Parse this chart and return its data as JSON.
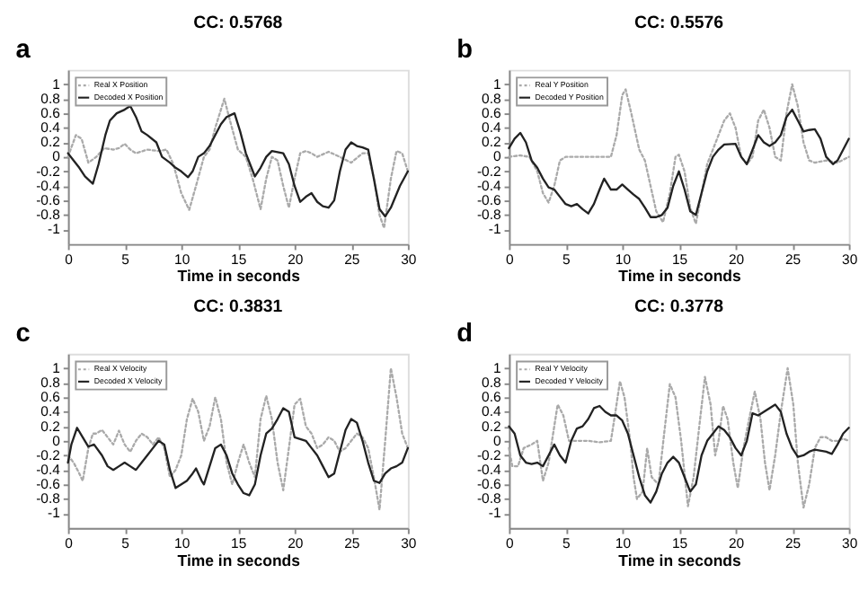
{
  "chart_data": [
    {
      "type": "line",
      "title": "CC: 0.5768",
      "xlabel": "Time in seconds",
      "annotations": [
        "a"
      ],
      "xlim": [
        0,
        30
      ],
      "xticks": [
        0,
        5,
        10,
        15,
        20,
        25,
        30
      ],
      "ylim": [
        -1.2,
        1.2
      ],
      "yticks": [
        -1,
        -0.8,
        -0.6,
        -0.4,
        -0.2,
        0,
        0.2,
        0.4,
        0.6,
        0.8,
        1
      ],
      "legend": "top left",
      "grid": false,
      "series": [
        {
          "name": "Real X Position",
          "color": "#aaaaaa",
          "line_style": "dotted",
          "x": [
            0,
            0.7,
            1.2,
            1.8,
            2.5,
            3.2,
            4,
            4.5,
            5,
            5.5,
            6,
            7,
            8,
            8.7,
            9.3,
            10,
            10.7,
            11.3,
            12,
            12.5,
            13,
            13.8,
            14.3,
            15,
            15.7,
            16.3,
            17,
            17.5,
            18,
            18.5,
            19,
            19.5,
            20,
            20.5,
            21,
            21.5,
            22,
            23,
            24,
            25,
            26,
            26.5,
            27,
            27.5,
            27.9,
            28.5,
            29,
            29.5,
            30
          ],
          "values": [
            0,
            0.3,
            0.25,
            -0.08,
            0,
            0.12,
            0.1,
            0.12,
            0.18,
            0.1,
            0.05,
            0.1,
            0.08,
            0.1,
            -0.1,
            -0.5,
            -0.73,
            -0.4,
            0,
            0.1,
            0.4,
            0.8,
            0.5,
            0.1,
            0,
            -0.3,
            -0.72,
            -0.3,
            0,
            -0.05,
            -0.4,
            -0.7,
            -0.3,
            0.05,
            0.08,
            0.05,
            0,
            0.07,
            0,
            -0.08,
            0.05,
            0.05,
            -0.3,
            -0.8,
            -0.98,
            -0.3,
            0.08,
            0.05,
            -0.2
          ]
        },
        {
          "name": "Decoded X Position",
          "color": "#222222",
          "line_style": "solid",
          "x": [
            0,
            0.5,
            1,
            1.5,
            2.2,
            2.7,
            3.3,
            3.7,
            4.3,
            5,
            5.5,
            6,
            6.5,
            7,
            7.8,
            8.3,
            9,
            9.5,
            10,
            10.6,
            11,
            11.5,
            12,
            12.5,
            13.5,
            14,
            14.7,
            15.2,
            15.7,
            16.5,
            17,
            17.5,
            18,
            19,
            19.5,
            20,
            20.5,
            21,
            21.5,
            22,
            22.5,
            23,
            23.5,
            24,
            24.5,
            25,
            25.5,
            26,
            26.5,
            27,
            27.5,
            28,
            28.5,
            29.3,
            30
          ],
          "values": [
            0.05,
            -0.05,
            -0.15,
            -0.27,
            -0.37,
            -0.1,
            0.3,
            0.5,
            0.6,
            0.65,
            0.7,
            0.55,
            0.35,
            0.3,
            0.2,
            0,
            -0.08,
            -0.15,
            -0.2,
            -0.28,
            -0.2,
            0,
            0.05,
            0.15,
            0.45,
            0.55,
            0.6,
            0.35,
            0.05,
            -0.27,
            -0.15,
            0,
            0.08,
            0.05,
            -0.1,
            -0.4,
            -0.62,
            -0.55,
            -0.5,
            -0.62,
            -0.68,
            -0.7,
            -0.6,
            -0.2,
            0.1,
            0.2,
            0.15,
            0.13,
            0.1,
            -0.3,
            -0.72,
            -0.82,
            -0.7,
            -0.4,
            -0.2
          ]
        }
      ]
    },
    {
      "type": "line",
      "title": "CC: 0.5576",
      "xlabel": "Time in seconds",
      "annotations": [
        "b"
      ],
      "xlim": [
        0,
        30
      ],
      "xticks": [
        0,
        5,
        10,
        15,
        20,
        25,
        30
      ],
      "ylim": [
        -1.2,
        1.2
      ],
      "yticks": [
        -1,
        -0.8,
        -0.6,
        -0.4,
        -0.2,
        0,
        0.2,
        0.4,
        0.6,
        0.8,
        1
      ],
      "legend": "top left",
      "grid": false,
      "series": [
        {
          "name": "Real Y Position",
          "color": "#aaaaaa",
          "line_style": "dotted",
          "x": [
            0,
            1,
            1.8,
            2.5,
            3,
            3.5,
            4,
            4.5,
            5,
            6,
            7,
            8,
            9,
            9.5,
            10,
            10.3,
            10.8,
            11.5,
            12,
            12.5,
            13,
            13.6,
            14.2,
            14.7,
            15,
            15.5,
            16,
            16.5,
            17,
            17.5,
            18,
            18.5,
            19,
            19.5,
            20,
            20.5,
            21,
            21.5,
            22,
            22.5,
            23,
            23.5,
            24,
            24.5,
            25,
            25.5,
            26,
            26.5,
            27,
            28,
            29,
            30
          ],
          "values": [
            0,
            0.02,
            0,
            -0.2,
            -0.5,
            -0.63,
            -0.4,
            -0.05,
            0,
            0,
            0,
            0,
            0,
            0.3,
            0.85,
            0.93,
            0.6,
            0.1,
            -0.05,
            -0.4,
            -0.75,
            -0.9,
            -0.5,
            0,
            0.03,
            -0.2,
            -0.7,
            -0.92,
            -0.5,
            -0.1,
            0.1,
            0.3,
            0.5,
            0.6,
            0.4,
            0,
            -0.1,
            0,
            0.5,
            0.65,
            0.4,
            0,
            -0.05,
            0.6,
            1,
            0.7,
            0.2,
            -0.05,
            -0.08,
            -0.05,
            -0.08,
            0
          ]
        },
        {
          "name": "Decoded Y Position",
          "color": "#222222",
          "line_style": "solid",
          "x": [
            0,
            0.5,
            1,
            1.5,
            2,
            2.5,
            3,
            3.5,
            4,
            4.5,
            5,
            5.5,
            6,
            6.5,
            7,
            7.5,
            8,
            8.4,
            9,
            9.5,
            10,
            10.5,
            11,
            11.5,
            12,
            12.5,
            13,
            13.5,
            14,
            14.5,
            15,
            15.5,
            16,
            16.5,
            17,
            17.5,
            18,
            18.5,
            19,
            20,
            20.5,
            21,
            21.5,
            22,
            22.5,
            23,
            23.5,
            24,
            24.5,
            25,
            25.5,
            26,
            26.5,
            27,
            27.5,
            28,
            28.6,
            29,
            30
          ],
          "values": [
            0.12,
            0.25,
            0.33,
            0.2,
            -0.05,
            -0.15,
            -0.3,
            -0.42,
            -0.45,
            -0.55,
            -0.65,
            -0.68,
            -0.65,
            -0.72,
            -0.78,
            -0.65,
            -0.45,
            -0.3,
            -0.45,
            -0.45,
            -0.38,
            -0.45,
            -0.52,
            -0.58,
            -0.7,
            -0.83,
            -0.83,
            -0.8,
            -0.7,
            -0.4,
            -0.2,
            -0.45,
            -0.75,
            -0.8,
            -0.5,
            -0.2,
            0,
            0.1,
            0.17,
            0.18,
            0,
            -0.1,
            0.1,
            0.3,
            0.2,
            0.15,
            0.2,
            0.3,
            0.55,
            0.65,
            0.5,
            0.35,
            0.37,
            0.38,
            0.25,
            0,
            -0.1,
            -0.05,
            0.25
          ]
        }
      ]
    },
    {
      "type": "line",
      "title": "CC: 0.3831",
      "xlabel": "Time in seconds",
      "annotations": [
        "c"
      ],
      "xlim": [
        0,
        30
      ],
      "xticks": [
        0,
        5,
        10,
        15,
        20,
        25,
        30
      ],
      "ylim": [
        -1.2,
        1.2
      ],
      "yticks": [
        -1,
        -0.8,
        -0.6,
        -0.4,
        -0.2,
        0,
        0.2,
        0.4,
        0.6,
        0.8,
        1
      ],
      "legend": "top left",
      "grid": false,
      "series": [
        {
          "name": "Real X Velocity",
          "color": "#aaaaaa",
          "line_style": "dotted",
          "x": [
            0,
            0.5,
            1,
            1.3,
            1.8,
            2.2,
            2.5,
            3,
            3.5,
            4,
            4.5,
            5,
            5.5,
            6,
            6.5,
            7,
            7.5,
            8,
            8.5,
            9,
            9.5,
            10,
            10.5,
            11,
            11.5,
            12,
            12.5,
            13,
            13.5,
            14,
            14.5,
            15,
            15.5,
            16,
            16.5,
            17,
            17.5,
            18,
            18.5,
            19,
            19.5,
            20,
            20.5,
            21,
            21.5,
            22,
            22.5,
            23,
            23.5,
            24,
            24.5,
            25,
            25.5,
            26,
            26.5,
            27,
            27.5,
            28,
            28.5,
            29,
            29.5,
            30
          ],
          "values": [
            -0.2,
            -0.3,
            -0.45,
            -0.55,
            -0.1,
            0.1,
            0.1,
            0.15,
            0.05,
            -0.05,
            0.14,
            -0.05,
            -0.15,
            0,
            0.1,
            0.05,
            -0.05,
            0.05,
            -0.1,
            -0.5,
            -0.4,
            -0.2,
            0.3,
            0.58,
            0.4,
            0,
            0.2,
            0.6,
            0.3,
            -0.3,
            -0.6,
            -0.3,
            -0.05,
            -0.3,
            -0.5,
            0.3,
            0.62,
            0.3,
            -0.3,
            -0.68,
            -0.1,
            0.5,
            0.58,
            0.2,
            0.1,
            -0.1,
            -0.05,
            0.05,
            0,
            -0.15,
            -0.1,
            0,
            0.1,
            0.05,
            -0.1,
            -0.5,
            -0.95,
            0,
            1,
            0.6,
            0.1,
            -0.1
          ]
        },
        {
          "name": "Decoded X Velocity",
          "color": "#222222",
          "line_style": "solid",
          "x": [
            0,
            0.3,
            0.8,
            1.3,
            1.8,
            2.3,
            3,
            3.5,
            4,
            4.5,
            5,
            5.5,
            6,
            6.5,
            7,
            7.5,
            8,
            8.5,
            9,
            9.5,
            10,
            10.5,
            11,
            11.3,
            11.8,
            12,
            12.5,
            13,
            13.5,
            14,
            14.5,
            15,
            15.5,
            16,
            16.5,
            17,
            17.5,
            18,
            18.5,
            19,
            19.5,
            20,
            21,
            21.5,
            22,
            22.5,
            23,
            23.5,
            24,
            24.5,
            25,
            25.5,
            26,
            26.5,
            27,
            27.5,
            28,
            28.5,
            29,
            29.5,
            30
          ],
          "values": [
            -0.3,
            -0.05,
            0.18,
            0.05,
            -0.08,
            -0.05,
            -0.2,
            -0.35,
            -0.4,
            -0.35,
            -0.3,
            -0.35,
            -0.4,
            -0.3,
            -0.2,
            -0.1,
            0,
            -0.05,
            -0.4,
            -0.65,
            -0.6,
            -0.55,
            -0.45,
            -0.38,
            -0.55,
            -0.6,
            -0.35,
            -0.1,
            -0.05,
            -0.2,
            -0.45,
            -0.6,
            -0.72,
            -0.75,
            -0.6,
            -0.2,
            0.1,
            0.17,
            0.3,
            0.45,
            0.4,
            0.05,
            0,
            -0.1,
            -0.2,
            -0.35,
            -0.5,
            -0.45,
            -0.15,
            0.15,
            0.3,
            0.25,
            0,
            -0.3,
            -0.55,
            -0.58,
            -0.45,
            -0.38,
            -0.35,
            -0.3,
            -0.1
          ]
        }
      ]
    },
    {
      "type": "line",
      "title": "CC: 0.3778",
      "xlabel": "Time in seconds",
      "annotations": [
        "d"
      ],
      "xlim": [
        0,
        30
      ],
      "xticks": [
        0,
        5,
        10,
        15,
        20,
        25,
        30
      ],
      "ylim": [
        -1.2,
        1.2
      ],
      "yticks": [
        -1,
        -0.8,
        -0.6,
        -0.4,
        -0.2,
        0,
        0.2,
        0.4,
        0.6,
        0.8,
        1
      ],
      "legend": "top left",
      "grid": false,
      "series": [
        {
          "name": "Real Y Velocity",
          "color": "#aaaaaa",
          "line_style": "dotted",
          "x": [
            0,
            0.3,
            0.8,
            1.3,
            2,
            2.5,
            3,
            3.5,
            4,
            4.3,
            4.8,
            5.3,
            6,
            7,
            8,
            9,
            9.4,
            9.8,
            10.2,
            10.7,
            11,
            11.3,
            11.8,
            12.2,
            12.6,
            13.2,
            13.7,
            14.2,
            14.7,
            15.2,
            15.8,
            16.3,
            16.8,
            17.3,
            17.8,
            18.2,
            18.5,
            18.9,
            19.3,
            19.8,
            20.2,
            20.7,
            21.2,
            21.7,
            22.2,
            22.6,
            23,
            23.5,
            24,
            24.6,
            25.1,
            25.5,
            26,
            26.5,
            27,
            27.5,
            28,
            28.5,
            29,
            29.5,
            30
          ],
          "values": [
            -0.1,
            -0.35,
            -0.35,
            -0.1,
            -0.05,
            0,
            -0.55,
            -0.3,
            0.2,
            0.5,
            0.35,
            0,
            0,
            0,
            -0.02,
            0,
            0.4,
            0.82,
            0.6,
            0,
            -0.5,
            -0.8,
            -0.7,
            -0.1,
            -0.5,
            -0.6,
            0.1,
            0.78,
            0.6,
            0,
            -0.9,
            -0.5,
            0.2,
            0.88,
            0.5,
            -0.2,
            0,
            0.48,
            0.3,
            -0.3,
            -0.65,
            -0.1,
            0.3,
            0.68,
            0.3,
            -0.3,
            -0.68,
            -0.2,
            0.4,
            1,
            0.5,
            -0.3,
            -0.92,
            -0.6,
            -0.1,
            0.05,
            0.05,
            0,
            0,
            0.03,
            0
          ]
        },
        {
          "name": "Decoded Y Velocity",
          "color": "#222222",
          "line_style": "solid",
          "x": [
            0,
            0.5,
            1,
            1.5,
            2,
            2.5,
            3,
            3.5,
            4,
            4.5,
            5,
            5.5,
            6,
            6.5,
            7,
            7.5,
            8,
            8.5,
            9,
            9.5,
            10,
            10.5,
            11,
            11.5,
            12,
            12.5,
            13,
            13.5,
            14,
            14.5,
            15,
            15.5,
            16,
            16.5,
            17,
            17.5,
            18,
            18.5,
            19,
            19.5,
            20,
            20.5,
            21,
            21.5,
            22,
            22.5,
            23,
            23.5,
            24,
            24.5,
            25,
            25.5,
            26,
            26.5,
            27,
            28,
            28.5,
            29,
            29.5,
            30
          ],
          "values": [
            0.2,
            0.1,
            -0.2,
            -0.3,
            -0.32,
            -0.3,
            -0.35,
            -0.2,
            -0.05,
            -0.2,
            -0.3,
            0,
            0.17,
            0.2,
            0.3,
            0.45,
            0.48,
            0.4,
            0.35,
            0.35,
            0.28,
            0.1,
            -0.2,
            -0.5,
            -0.75,
            -0.85,
            -0.7,
            -0.45,
            -0.3,
            -0.22,
            -0.3,
            -0.5,
            -0.7,
            -0.6,
            -0.2,
            0,
            0.1,
            0.2,
            0.15,
            0.05,
            -0.1,
            -0.2,
            0,
            0.38,
            0.35,
            0.4,
            0.45,
            0.5,
            0.4,
            0.1,
            -0.1,
            -0.22,
            -0.2,
            -0.15,
            -0.12,
            -0.15,
            -0.18,
            -0.05,
            0.1,
            0.18
          ]
        }
      ]
    }
  ]
}
